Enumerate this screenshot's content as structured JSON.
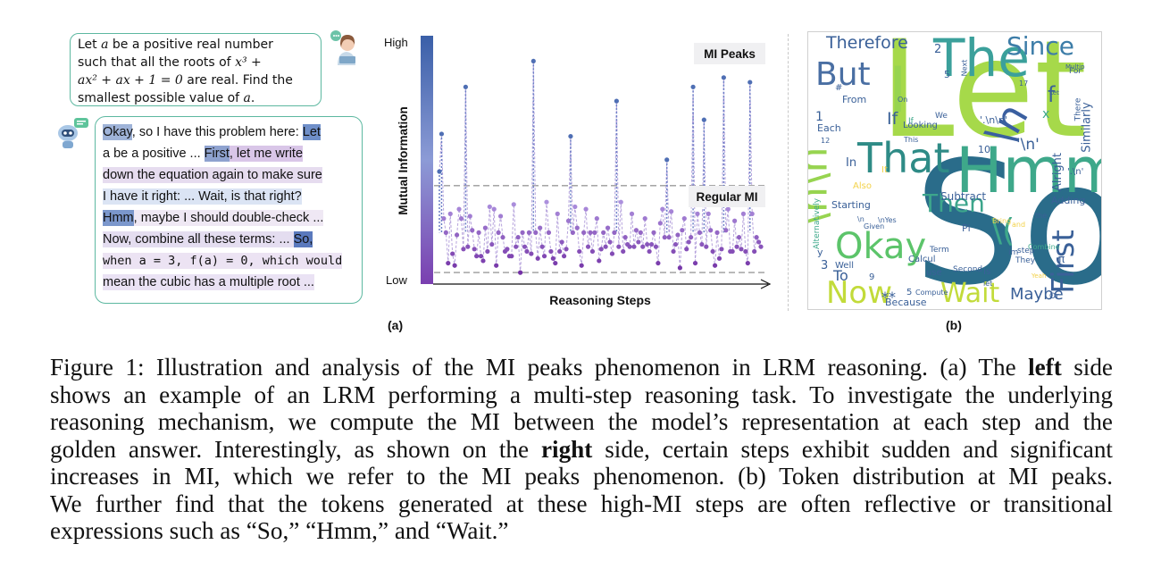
{
  "panel_a": {
    "question_parts": {
      "p1": "Let ",
      "a1": "a",
      "p2": " be a positive real number",
      "p3": "such that all the roots of ",
      "expr1": "x³ +",
      "expr2": "ax² + ax + 1 = 0",
      "p4": " are real. Find the",
      "p5": "smallest possible value of ",
      "a2": "a",
      "p6": "."
    },
    "answer_lines": [
      [
        {
          "t": "Okay",
          "c": "#9fb3d8"
        },
        {
          "t": ", so I have this problem here: ",
          "c": null
        },
        {
          "t": "Let",
          "c": "#6f8fc9"
        }
      ],
      [
        {
          "t": "a be a positive ... ",
          "c": null
        },
        {
          "t": "First",
          "c": "#8ea2cf"
        },
        {
          "t": ", let me write",
          "c": "#d9c6e8"
        }
      ],
      [
        {
          "t": "down the equation again to make sure",
          "c": "#e6dcef"
        }
      ],
      [
        {
          "t": "I have it right: ... Wait, is that right?",
          "c": "#dbe4f4"
        }
      ],
      [
        {
          "t": "Hmm",
          "c": "#7b97cc"
        },
        {
          "t": ", maybe I should double-check ...",
          "c": "#efe8f4"
        }
      ],
      [
        {
          "t": "Now, combine all these terms: ... ",
          "c": "#e4ddf0"
        },
        {
          "t": "So,",
          "c": "#5a79bd"
        }
      ],
      [
        {
          "t": "when a = 3, f(a) = 0, which would",
          "c": "#ece3f3",
          "mono": true
        }
      ],
      [
        {
          "t": "mean the cubic has a multiple root ...",
          "c": "#eae2f4"
        }
      ]
    ],
    "label": "(a)"
  },
  "chart_data": {
    "type": "scatter",
    "subtype": "lollipop",
    "xlabel": "Reasoning Steps",
    "ylabel": "Mutual Information",
    "y_top_tick": "High",
    "y_bottom_tick": "Low",
    "ylim": [
      0,
      1
    ],
    "annotations": [
      "MI Peaks",
      "Regular MI"
    ],
    "threshold_peak": 0.4,
    "threshold_regular": 0.03,
    "values": [
      0.46,
      0.62,
      0.26,
      0.2,
      0.07,
      0.28,
      0.11,
      0.06,
      0.19,
      0.3,
      0.26,
      0.13,
      0.82,
      0.14,
      0.27,
      0.21,
      0.13,
      0.1,
      0.2,
      0.1,
      0.08,
      0.22,
      0.12,
      0.31,
      0.15,
      0.3,
      0.06,
      0.2,
      0.27,
      0.18,
      0.12,
      0.13,
      0.1,
      0.1,
      0.32,
      0.14,
      0.18,
      0.03,
      0.2,
      0.14,
      0.12,
      0.2,
      0.11,
      0.93,
      0.2,
      0.09,
      0.22,
      0.14,
      0.1,
      0.33,
      0.2,
      0.12,
      0.09,
      0.07,
      0.28,
      0.12,
      0.16,
      0.1,
      0.13,
      0.25,
      0.61,
      0.2,
      0.31,
      0.22,
      0.12,
      0.06,
      0.2,
      0.3,
      0.14,
      0.2,
      0.12,
      0.2,
      0.26,
      0.08,
      0.13,
      0.2,
      0.14,
      0.22,
      0.16,
      0.11,
      0.2,
      0.76,
      0.14,
      0.33,
      0.12,
      0.18,
      0.15,
      0.14,
      0.28,
      0.14,
      0.21,
      0.16,
      0.2,
      0.14,
      0.26,
      0.15,
      0.12,
      0.15,
      0.2,
      0.14,
      0.07,
      0.24,
      0.3,
      0.18,
      0.51,
      0.18,
      0.29,
      0.12,
      0.15,
      0.19,
      0.05,
      0.21,
      0.26,
      0.13,
      0.16,
      0.18,
      0.82,
      0.07,
      0.28,
      0.2,
      0.15,
      0.68,
      0.14,
      0.28,
      0.21,
      0.12,
      0.06,
      0.2,
      0.09,
      0.13,
      0.86,
      0.21,
      0.3,
      0.12,
      0.12,
      0.25,
      0.14,
      0.18,
      0.13,
      0.28,
      0.12,
      0.07,
      0.84,
      0.28,
      0.12,
      0.18,
      0.16,
      0.14
    ]
  },
  "panel_b": {
    "label": "(b)",
    "words": [
      {
        "t": "Let",
        "c": "#a6d94a",
        "fs": 150,
        "l": 80,
        "tp": -10,
        "rot": 0
      },
      {
        "t": "So",
        "c": "#2a6c8a",
        "fs": 190,
        "l": 118,
        "tp": 120,
        "rot": 0
      },
      {
        "t": "Hmm",
        "c": "#3ea88a",
        "fs": 70,
        "l": 165,
        "tp": 120,
        "rot": 0
      },
      {
        "t": "The",
        "c": "#3ba09b",
        "fs": 58,
        "l": 140,
        "tp": 0,
        "rot": 0
      },
      {
        "t": "I",
        "c": "#97d450",
        "fs": 70,
        "l": 90,
        "tp": 30,
        "rot": 0
      },
      {
        "t": "\\n\\n",
        "c": "#97d450",
        "fs": 46,
        "l": -40,
        "tp": 150,
        "rot": -90
      },
      {
        "t": "\\n",
        "c": "#3a5fa0",
        "fs": 46,
        "l": 200,
        "tp": 80,
        "rot": -60
      },
      {
        "t": "That",
        "c": "#2e8b86",
        "fs": 46,
        "l": 55,
        "tp": 118,
        "rot": 0
      },
      {
        "t": "But",
        "c": "#4a6fa3",
        "fs": 36,
        "l": 8,
        "tp": 30,
        "rot": 0
      },
      {
        "t": "Okay",
        "c": "#5cc46a",
        "fs": 40,
        "l": 30,
        "tp": 220,
        "rot": 0
      },
      {
        "t": "Now",
        "c": "#c2db3a",
        "fs": 34,
        "l": 20,
        "tp": 275,
        "rot": 0
      },
      {
        "t": "Wait",
        "c": "#c2db3a",
        "fs": 30,
        "l": 148,
        "tp": 278,
        "rot": 0
      },
      {
        "t": "Then",
        "c": "#3da68c",
        "fs": 28,
        "l": 128,
        "tp": 178,
        "rot": 0
      },
      {
        "t": "First",
        "c": "#3a6098",
        "fs": 34,
        "l": 250,
        "tp": 240,
        "rot": -90
      },
      {
        "t": "Therefore",
        "c": "#3a6098",
        "fs": 19,
        "l": 20,
        "tp": 3,
        "rot": 0
      },
      {
        "t": "Since",
        "c": "#3d7da8",
        "fs": 28,
        "l": 222,
        "tp": 2,
        "rot": 0
      },
      {
        "t": "Maybe",
        "c": "#3a6098",
        "fs": 18,
        "l": 226,
        "tp": 285,
        "rot": 0
      },
      {
        "t": "If",
        "c": "#3a6098",
        "fs": 19,
        "l": 88,
        "tp": 88,
        "rot": 0
      },
      {
        "t": "\\(",
        "c": "#3ea88a",
        "fs": 36,
        "l": 205,
        "tp": 205,
        "rot": 0
      },
      {
        "t": "Similarly",
        "c": "#3a6098",
        "fs": 13,
        "l": 284,
        "tp": 100,
        "rot": -90
      },
      {
        "t": "Alright",
        "c": "#3a6098",
        "fs": 13,
        "l": 258,
        "tp": 150,
        "rot": -90
      },
      {
        "t": "Subtract",
        "c": "#3a6098",
        "fs": 12,
        "l": 148,
        "tp": 178,
        "rot": 0
      },
      {
        "t": "Adding",
        "c": "#3a6098",
        "fs": 11,
        "l": 272,
        "tp": 183,
        "rot": 0
      },
      {
        "t": "Starting",
        "c": "#3a6098",
        "fs": 11,
        "l": 26,
        "tp": 188,
        "rot": 0
      },
      {
        "t": "Alternatively",
        "c": "#3ea88a",
        "fs": 9,
        "l": -18,
        "tp": 210,
        "rot": -90
      },
      {
        "t": "From",
        "c": "#3a6098",
        "fs": 11,
        "l": 38,
        "tp": 70,
        "rot": 0
      },
      {
        "t": "Each",
        "c": "#3a6098",
        "fs": 11,
        "l": 10,
        "tp": 102,
        "rot": 0
      },
      {
        "t": "In",
        "c": "#3a6098",
        "fs": 13,
        "l": 42,
        "tp": 140,
        "rot": 0
      },
      {
        "t": "Also",
        "c": "#f3d24a",
        "fs": 10,
        "l": 50,
        "tp": 168,
        "rot": 0
      },
      {
        "t": "To",
        "c": "#3a6098",
        "fs": 16,
        "l": 28,
        "tp": 265,
        "rot": 0
      },
      {
        "t": "Because",
        "c": "#3a6098",
        "fs": 11,
        "l": 86,
        "tp": 297,
        "rot": 0
      },
      {
        "t": "Compute",
        "c": "#3a6098",
        "fs": 8,
        "l": 120,
        "tp": 288,
        "rot": 0
      },
      {
        "t": "Calcul",
        "c": "#3a6098",
        "fs": 10,
        "l": 112,
        "tp": 250,
        "rot": 0
      },
      {
        "t": "Term",
        "c": "#3a6098",
        "fs": 9,
        "l": 136,
        "tp": 240,
        "rot": 0
      },
      {
        "t": "use",
        "c": "#3a6098",
        "fs": 10,
        "l": 132,
        "tp": 265,
        "rot": 0
      },
      {
        "t": "Pl",
        "c": "#3a6098",
        "fs": 11,
        "l": 172,
        "tp": 214,
        "rot": 0
      },
      {
        "t": "Second",
        "c": "#3a6098",
        "fs": 9,
        "l": 162,
        "tp": 262,
        "rot": 0
      },
      {
        "t": "Is",
        "c": "#3a6098",
        "fs": 10,
        "l": 196,
        "tp": 264,
        "rot": 0
      },
      {
        "t": "They",
        "c": "#3a6098",
        "fs": 9,
        "l": 232,
        "tp": 252,
        "rot": 0
      },
      {
        "t": "Combine",
        "c": "#3ea88a",
        "fs": 8,
        "l": 246,
        "tp": 237,
        "rot": 0
      },
      {
        "t": "Or",
        "c": "#3a6098",
        "fs": 9,
        "l": 270,
        "tp": 292,
        "rot": 0
      },
      {
        "t": "step",
        "c": "#3a6098",
        "fs": 9,
        "l": 234,
        "tp": 241,
        "rot": 0
      },
      {
        "t": "im",
        "c": "#3a6098",
        "fs": 9,
        "l": 224,
        "tp": 243,
        "rot": 0
      },
      {
        "t": "the",
        "c": "#3a6098",
        "fs": 8,
        "l": 254,
        "tp": 202,
        "rot": 0
      },
      {
        "t": "Bring",
        "c": "#f3d24a",
        "fs": 8,
        "l": 206,
        "tp": 208,
        "rot": 0
      },
      {
        "t": "and",
        "c": "#f3d24a",
        "fs": 8,
        "l": 228,
        "tp": 212,
        "rot": 0
      },
      {
        "t": "π",
        "c": "#3a6098",
        "fs": 12,
        "l": 280,
        "tp": 248,
        "rot": 0
      },
      {
        "t": "x",
        "c": "#3ea88a",
        "fs": 14,
        "l": 262,
        "tp": 85,
        "rot": 0
      },
      {
        "t": "f",
        "c": "#3a6098",
        "fs": 24,
        "l": 268,
        "tp": 58,
        "rot": 0
      },
      {
        "t": "2",
        "c": "#3a6098",
        "fs": 13,
        "l": 141,
        "tp": 13,
        "rot": 0
      },
      {
        "t": "5",
        "c": "#3a6098",
        "fs": 11,
        "l": 152,
        "tp": 42,
        "rot": 0
      },
      {
        "t": "1",
        "c": "#3a6098",
        "fs": 14,
        "l": 8,
        "tp": 88,
        "rot": 0
      },
      {
        "t": "12",
        "c": "#3a6098",
        "fs": 8,
        "l": 14,
        "tp": 118,
        "rot": 0
      },
      {
        "t": "10",
        "c": "#3a6098",
        "fs": 11,
        "l": 190,
        "tp": 126,
        "rot": 0
      },
      {
        "t": "17",
        "c": "#3a6098",
        "fs": 8,
        "l": 236,
        "tp": 54,
        "rot": 0
      },
      {
        "t": "If",
        "c": "#3ea88a",
        "fs": 9,
        "l": 112,
        "tp": 96,
        "rot": 0
      },
      {
        "t": "We",
        "c": "#3a6098",
        "fs": 9,
        "l": 142,
        "tp": 90,
        "rot": 0
      },
      {
        "t": "Looking",
        "c": "#3a6098",
        "fs": 10,
        "l": 106,
        "tp": 100,
        "rot": 0
      },
      {
        "t": "This",
        "c": "#3a6098",
        "fs": 8,
        "l": 107,
        "tp": 117,
        "rot": 0
      },
      {
        "t": "On",
        "c": "#3a6098",
        "fs": 8,
        "l": 100,
        "tp": 72,
        "rot": 0
      },
      {
        "t": "Next",
        "c": "#3a6098",
        "fs": 8,
        "l": 166,
        "tp": 36,
        "rot": -90
      },
      {
        "t": "Multip",
        "c": "#3a6098",
        "fs": 7,
        "l": 288,
        "tp": 36,
        "rot": 0
      },
      {
        "t": "'.\\n\\n'",
        "c": "#3a6098",
        "fs": 11,
        "l": 192,
        "tp": 93,
        "rot": 0
      },
      {
        "t": "'\\n'",
        "c": "#3a6098",
        "fs": 17,
        "l": 233,
        "tp": 118,
        "rot": 0
      },
      {
        "t": "'.\\n'",
        "c": "#3a6098",
        "fs": 10,
        "l": 290,
        "tp": 152,
        "rot": 0
      },
      {
        "t": "Let",
        "c": "#3a6098",
        "fs": 7,
        "l": 270,
        "tp": 65,
        "rot": 0
      },
      {
        "t": "There",
        "c": "#3a6098",
        "fs": 9,
        "l": 290,
        "tp": 82,
        "rot": -90
      },
      {
        "t": "For",
        "c": "#3a6098",
        "fs": 9,
        "l": 292,
        "tp": 40,
        "rot": 0
      },
      {
        "t": "#",
        "c": "#3a6098",
        "fs": 10,
        "l": 30,
        "tp": 58,
        "rot": 0
      },
      {
        "t": "It",
        "c": "#f3d24a",
        "fs": 10,
        "l": 82,
        "tp": 150,
        "rot": 0
      },
      {
        "t": "y",
        "c": "#3a6098",
        "fs": 11,
        "l": 10,
        "tp": 241,
        "rot": 0
      },
      {
        "t": "Given",
        "c": "#3a6098",
        "fs": 8,
        "l": 62,
        "tp": 214,
        "rot": 0
      },
      {
        "t": "\\n",
        "c": "#3a6098",
        "fs": 8,
        "l": 55,
        "tp": 206,
        "rot": 0
      },
      {
        "t": "\\nYes",
        "c": "#3a6098",
        "fs": 8,
        "l": 78,
        "tp": 207,
        "rot": 0
      },
      {
        "t": "3",
        "c": "#3a6098",
        "fs": 13,
        "l": 14,
        "tp": 255,
        "rot": 0
      },
      {
        "t": "Well",
        "c": "#3a6098",
        "fs": 10,
        "l": 30,
        "tp": 257,
        "rot": 0
      },
      {
        "t": "**",
        "c": "#3a6098",
        "fs": 16,
        "l": 82,
        "tp": 289,
        "rot": 0
      },
      {
        "t": "5",
        "c": "#3a6098",
        "fs": 10,
        "l": 110,
        "tp": 287,
        "rot": 0
      },
      {
        "t": "let",
        "c": "#3a6098",
        "fs": 8,
        "l": 196,
        "tp": 278,
        "rot": 0
      },
      {
        "t": "Yeah",
        "c": "#f3d24a",
        "fs": 7,
        "l": 250,
        "tp": 270,
        "rot": 0
      },
      {
        "t": "9",
        "c": "#3a6098",
        "fs": 10,
        "l": 68,
        "tp": 270,
        "rot": 0
      }
    ]
  },
  "caption": {
    "lines": [
      {
        "parts": [
          {
            "t": "Figure 1: Illustration and analysis of the MI peaks phenomenon in LRM reasoning. (a) The ",
            "b": false
          },
          {
            "t": "left",
            "b": true
          },
          {
            "t": " side",
            "b": false
          }
        ]
      },
      {
        "parts": [
          {
            "t": "shows an example of an LRM performing a multi-step reasoning task. To investigate the underlying",
            "b": false
          }
        ]
      },
      {
        "parts": [
          {
            "t": "reasoning mechanism, we compute the MI between the model’s representation at each step and the",
            "b": false
          }
        ]
      },
      {
        "parts": [
          {
            "t": "golden answer. Interestingly, as shown on the ",
            "b": false
          },
          {
            "t": "right",
            "b": true
          },
          {
            "t": " side, certain steps exhibit sudden and significant",
            "b": false
          }
        ]
      },
      {
        "parts": [
          {
            "t": "increases in MI, which we refer to the MI peaks phenomenon. (b) Token distribution at MI peaks.",
            "b": false
          }
        ]
      },
      {
        "parts": [
          {
            "t": "We further find that the tokens generated at these high-MI steps are often reflective or transitional",
            "b": false
          }
        ]
      },
      {
        "parts": [
          {
            "t": "expressions such as “So,” “Hmm,” and “Wait.”",
            "b": false
          }
        ]
      }
    ]
  }
}
